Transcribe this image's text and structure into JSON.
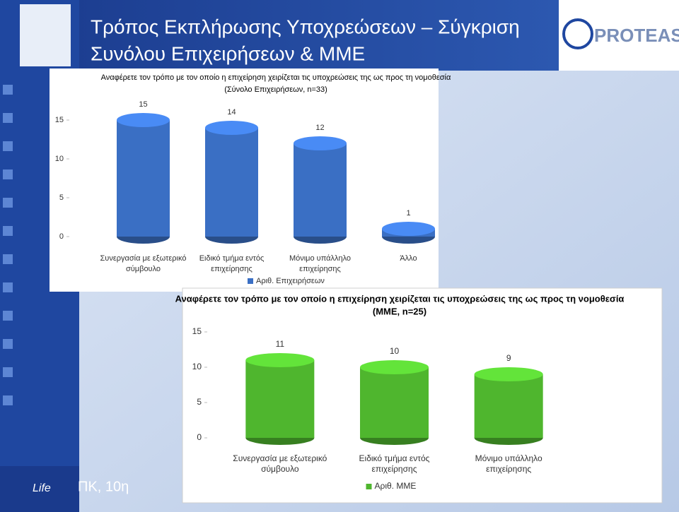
{
  "slide": {
    "title": [
      "Τρόπος Εκπλήρωσης Υποχρεώσεων – Σύγκριση",
      "Συνόλου Επιχειρήσεων & ΜΜΕ"
    ],
    "logo": "PROTEAS",
    "badge": "Life",
    "footer": "ΠΚ, 10η"
  },
  "chart_data": [
    {
      "type": "bar",
      "title": [
        "Αναφέρετε τον τρόπο με τον οποίο η επιχείρηση χειρίζεται τις υποχρεώσεις της ως προς τη νομοθεσία",
        "(Σύνολο Επιχειρήσεων, n=33)"
      ],
      "categories": [
        [
          "Συνεργασία με εξωτερικό",
          "σύμβουλο"
        ],
        [
          "Ειδικό τμήμα εντός",
          "επιχείρησης"
        ],
        [
          "Μόνιμο υπάλληλο",
          "επιχείρησης"
        ],
        [
          "Άλλο"
        ]
      ],
      "series": [
        {
          "name": "Αριθ. Επιχειρήσεων",
          "color": "#3a6fc4",
          "values": [
            15,
            14,
            12,
            1
          ]
        }
      ],
      "ylim": [
        0,
        15
      ],
      "yticks": [
        0,
        5,
        10,
        15
      ]
    },
    {
      "type": "bar",
      "title": [
        "Αναφέρετε τον τρόπο με τον οποίο η επιχείρηση χειρίζεται τις υποχρεώσεις της ως προς τη νομοθεσία",
        "(ΜΜΕ, n=25)"
      ],
      "categories": [
        [
          "Συνεργασία με εξωτερικό",
          "σύμβουλο"
        ],
        [
          "Ειδικό τμήμα εντός",
          "επιχείρησης"
        ],
        [
          "Μόνιμο υπάλληλο",
          "επιχείρησης"
        ]
      ],
      "series": [
        {
          "name": "Αριθ. ΜΜΕ",
          "color": "#4fb62e",
          "values": [
            11,
            10,
            9
          ]
        }
      ],
      "ylim": [
        0,
        15
      ],
      "yticks": [
        0,
        5,
        10,
        15
      ]
    }
  ]
}
